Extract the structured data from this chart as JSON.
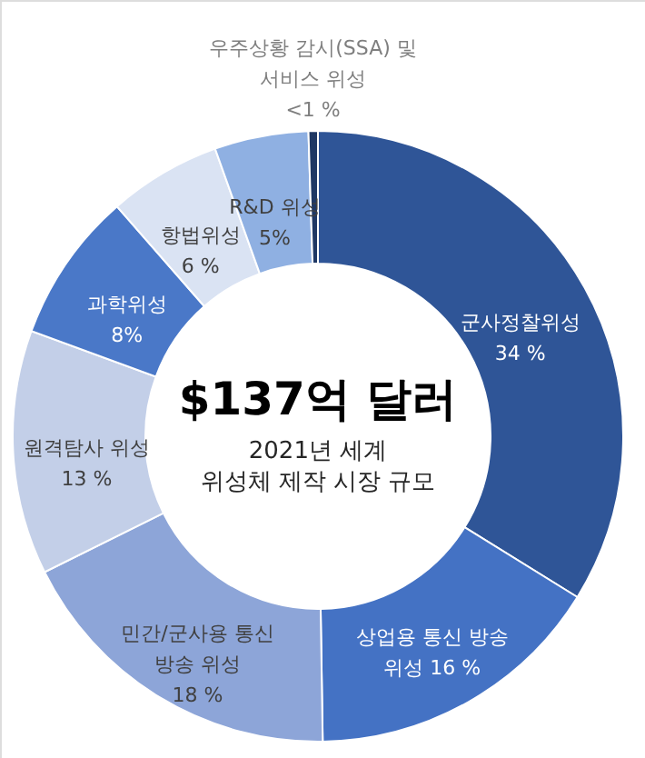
{
  "chart_data": {
    "type": "donut",
    "title": "$137억 달러",
    "subtitle": "2021년 세계 위성체 제작 시장 규모",
    "categories": [
      "군사정찰위성",
      "상업용 통신 방송 위성",
      "민간/군사용 통신 방송 위성",
      "원격탐사 위성",
      "과학위성",
      "항법위성",
      "R&D 위성",
      "우주상황 감시(SSA) 및 서비스 위성"
    ],
    "values": [
      34,
      16,
      18,
      13,
      8,
      6,
      5,
      0.5
    ],
    "value_labels": [
      "34 %",
      "16 %",
      "18 %",
      "13 %",
      "8%",
      "6 %",
      "5%",
      "<1 %"
    ],
    "colors": [
      "#2f5597",
      "#4472c4",
      "#8da5d8",
      "#c3cfe8",
      "#4a78c8",
      "#dae3f3",
      "#8fb0e2",
      "#1f3864"
    ]
  }
}
